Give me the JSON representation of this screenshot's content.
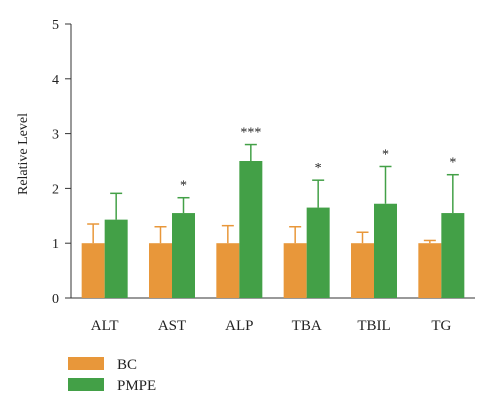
{
  "chart_data": {
    "type": "bar",
    "ylabel": "Relative Level",
    "ylim": [
      0,
      5
    ],
    "yticks": [
      "0",
      "1",
      "2",
      "3",
      "4",
      "5"
    ],
    "categories": [
      "ALT",
      "AST",
      "ALP",
      "TBA",
      "TBIL",
      "TG"
    ],
    "series": [
      {
        "name": "BC",
        "color": "#E8973A",
        "values": [
          1.0,
          1.0,
          1.0,
          1.0,
          1.0,
          1.0
        ],
        "errors": [
          0.35,
          0.3,
          0.32,
          0.3,
          0.2,
          0.05
        ]
      },
      {
        "name": "PMPE",
        "color": "#43A047",
        "values": [
          1.43,
          1.55,
          2.5,
          1.65,
          1.72,
          1.55
        ],
        "errors": [
          0.48,
          0.28,
          0.3,
          0.5,
          0.68,
          0.7
        ]
      }
    ],
    "significance": [
      "",
      "*",
      "***",
      "*",
      "*",
      "*"
    ],
    "legend": {
      "position": "bottom-left",
      "labels": [
        "BC",
        "PMPE"
      ]
    },
    "grid": false
  }
}
